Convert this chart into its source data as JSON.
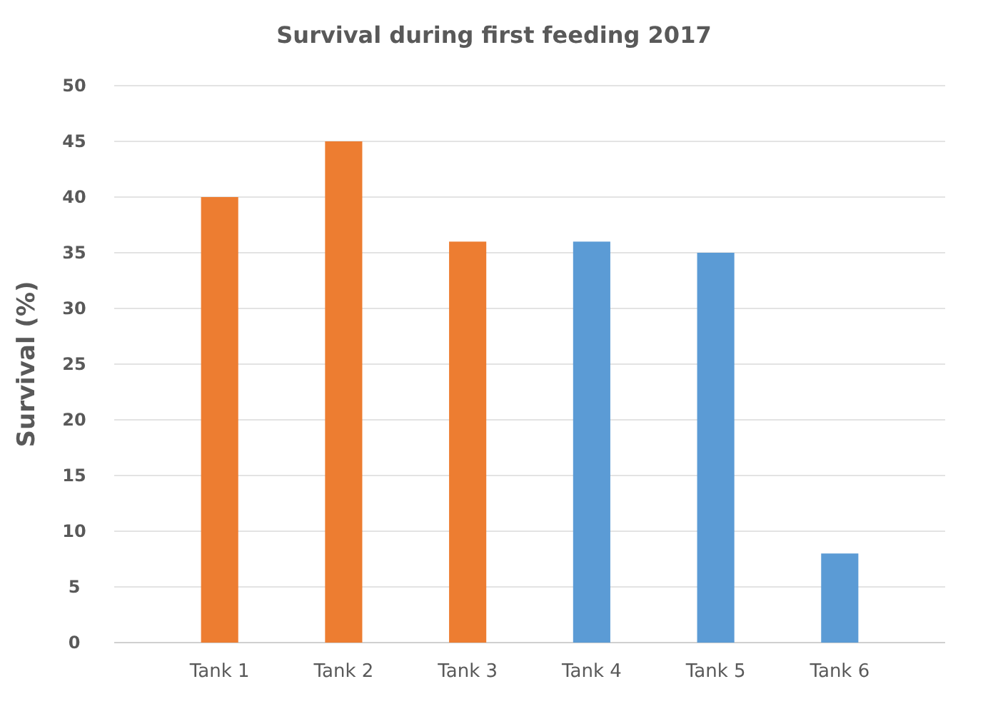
{
  "chart_data": {
    "type": "bar",
    "title": "Survival during first feeding 2017",
    "ylabel": "Survival (%)",
    "categories": [
      "Tank 1",
      "Tank 2",
      "Tank 3",
      "Tank 4",
      "Tank 5",
      "Tank 6"
    ],
    "values": [
      40,
      45,
      36,
      36,
      35,
      8
    ],
    "colors": [
      "#ed7d31",
      "#ed7d31",
      "#ed7d31",
      "#5b9bd5",
      "#5b9bd5",
      "#5b9bd5"
    ],
    "ylim": [
      0,
      50
    ],
    "yticks": [
      0,
      5,
      10,
      15,
      20,
      25,
      30,
      35,
      40,
      45,
      50
    ],
    "grid": "y"
  }
}
